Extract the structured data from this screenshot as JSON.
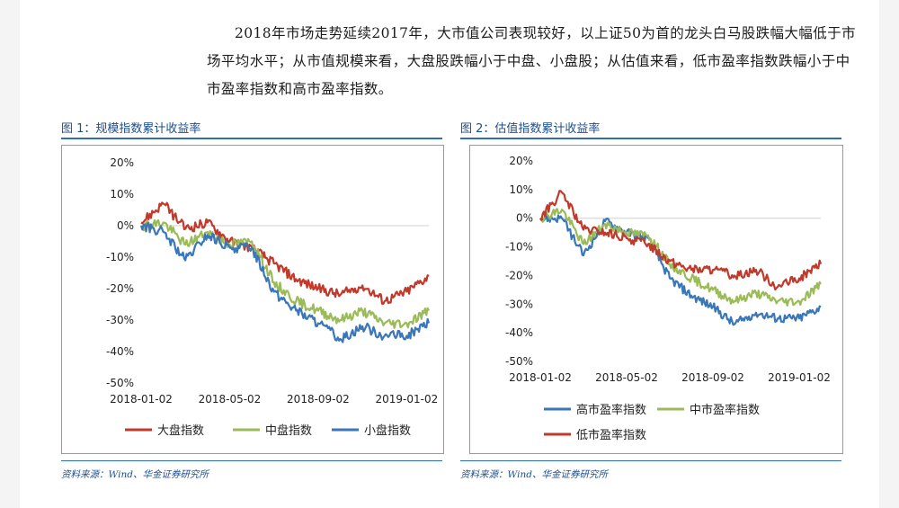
{
  "paragraph": "2018年市场走势延续2017年，大市值公司表现较好，以上证50为首的龙头白马股跌幅大幅低于市场平均水平；从市值规模来看，大盘股跌幅小于中盘、小盘股；从估值来看，低市盈率指数跌幅小于中市盈率指数和高市盈率指数。",
  "colors": {
    "red": "#c0392b",
    "green": "#9bbb59",
    "blue": "#3a77b8",
    "accent": "#1e4e8c"
  },
  "figure1": {
    "title": "图 1：规模指数累计收益率",
    "source": "资料来源：Wind、华金证券研究所"
  },
  "figure2": {
    "title": "图 2：估值指数累计收益率",
    "source": "资料来源：Wind、华金证券研究所"
  },
  "chart_data": [
    {
      "type": "line",
      "title": "",
      "x": [
        "2018-01-02",
        "2018-02-01",
        "2018-03-01",
        "2018-04-01",
        "2018-05-02",
        "2018-06-01",
        "2018-07-01",
        "2018-08-01",
        "2018-09-02",
        "2018-10-01",
        "2018-11-01",
        "2018-12-01",
        "2019-01-02",
        "2019-02-01"
      ],
      "xticks": [
        "2018-01-02",
        "2018-05-02",
        "2018-09-02",
        "2019-01-02"
      ],
      "yticks": [
        "20%",
        "10%",
        "0%",
        "-10%",
        "-20%",
        "-30%",
        "-40%",
        "-50%"
      ],
      "ylim": [
        -50,
        20
      ],
      "legend_position": "bottom",
      "series": [
        {
          "name": "大盘指数",
          "color": "red",
          "values": [
            1,
            7,
            -1,
            1,
            -5,
            -7,
            -12,
            -17,
            -20,
            -22,
            -19,
            -24,
            -21,
            -16
          ]
        },
        {
          "name": "中盘指数",
          "color": "green",
          "values": [
            0,
            1,
            -6,
            -2,
            -6,
            -5,
            -18,
            -24,
            -27,
            -30,
            -27,
            -31,
            -31,
            -27
          ]
        },
        {
          "name": "小盘指数",
          "color": "blue",
          "values": [
            0,
            -2,
            -11,
            -3,
            -7,
            -7,
            -21,
            -27,
            -31,
            -36,
            -32,
            -35,
            -35,
            -31
          ]
        }
      ]
    },
    {
      "type": "line",
      "title": "",
      "x": [
        "2018-01-02",
        "2018-02-01",
        "2018-03-01",
        "2018-04-01",
        "2018-05-02",
        "2018-06-01",
        "2018-07-01",
        "2018-08-01",
        "2018-09-02",
        "2018-10-01",
        "2018-11-01",
        "2018-12-01",
        "2019-01-02",
        "2019-02-01"
      ],
      "xticks": [
        "2018-01-02",
        "2018-05-02",
        "2018-09-02",
        "2019-01-02"
      ],
      "yticks": [
        "20%",
        "10%",
        "0%",
        "-10%",
        "-20%",
        "-30%",
        "-40%",
        "-50%"
      ],
      "ylim": [
        -50,
        20
      ],
      "legend_position": "bottom",
      "series": [
        {
          "name": "高市盈率指数",
          "color": "blue",
          "values": [
            0,
            0,
            -13,
            -1,
            -5,
            -7,
            -21,
            -27,
            -31,
            -37,
            -33,
            -35,
            -35,
            -31
          ]
        },
        {
          "name": "中市盈率指数",
          "color": "green",
          "values": [
            0,
            3,
            -9,
            -2,
            -5,
            -6,
            -16,
            -21,
            -25,
            -29,
            -26,
            -29,
            -29,
            -23
          ]
        },
        {
          "name": "低市盈率指数",
          "color": "red",
          "values": [
            0,
            9,
            -4,
            -5,
            -7,
            -9,
            -15,
            -18,
            -18,
            -20,
            -18,
            -24,
            -21,
            -16
          ]
        }
      ]
    }
  ]
}
